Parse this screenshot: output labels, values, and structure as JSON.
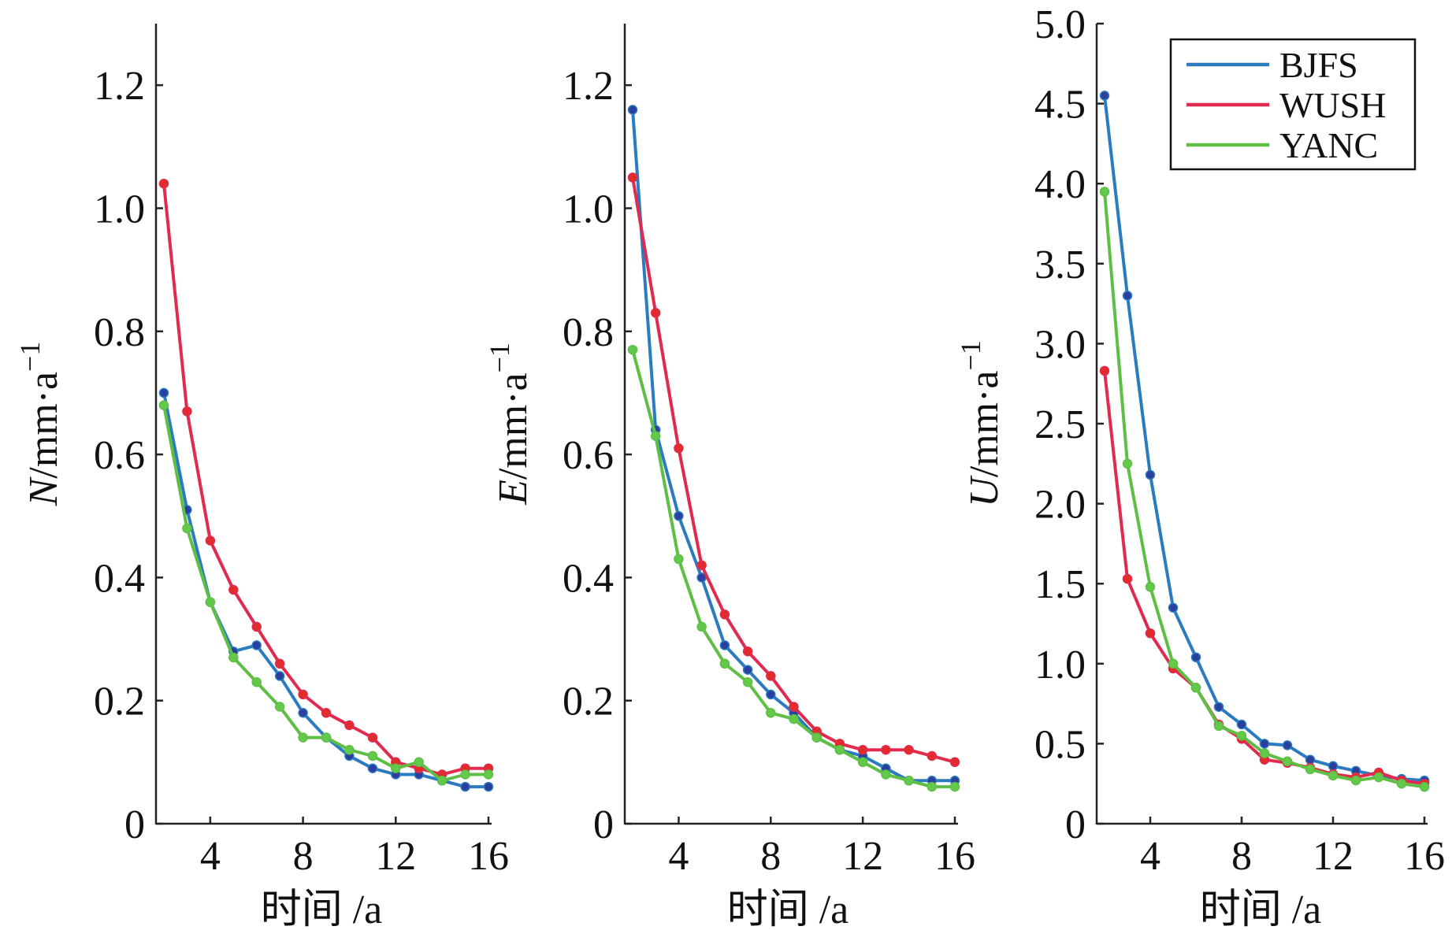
{
  "chart_data": [
    {
      "type": "line",
      "ylabel_var": "N",
      "ylabel_unit": "/mm·a",
      "ylabel_exp": "−1",
      "xlabel": "时间 /a",
      "ylim": [
        0,
        1.3
      ],
      "xlim": [
        2,
        16
      ],
      "yticks": [
        0,
        0.2,
        0.4,
        0.6,
        0.8,
        1.0,
        1.2
      ],
      "ytick_labels": [
        "0",
        "0.2",
        "0.4",
        "0.6",
        "0.8",
        "1.0",
        "1.2"
      ],
      "xticks": [
        4,
        8,
        12,
        16
      ],
      "xtick_labels": [
        "4",
        "8",
        "12",
        "16"
      ],
      "x": [
        2,
        3,
        4,
        5,
        6,
        7,
        8,
        9,
        10,
        11,
        12,
        13,
        14,
        15,
        16
      ],
      "series": [
        {
          "name": "BJFS",
          "values": [
            0.7,
            0.51,
            0.36,
            0.28,
            0.29,
            0.24,
            0.18,
            0.14,
            0.11,
            0.09,
            0.08,
            0.08,
            0.07,
            0.06,
            0.06
          ]
        },
        {
          "name": "WUSH",
          "values": [
            1.04,
            0.67,
            0.46,
            0.38,
            0.32,
            0.26,
            0.21,
            0.18,
            0.16,
            0.14,
            0.1,
            0.09,
            0.08,
            0.09,
            0.09
          ]
        },
        {
          "name": "YANC",
          "values": [
            0.68,
            0.48,
            0.36,
            0.27,
            0.23,
            0.19,
            0.14,
            0.14,
            0.12,
            0.11,
            0.09,
            0.1,
            0.07,
            0.08,
            0.08
          ]
        }
      ]
    },
    {
      "type": "line",
      "ylabel_var": "E",
      "ylabel_unit": "/mm·a",
      "ylabel_exp": "−1",
      "xlabel": "时间 /a",
      "ylim": [
        0,
        1.3
      ],
      "xlim": [
        2,
        16
      ],
      "yticks": [
        0,
        0.2,
        0.4,
        0.6,
        0.8,
        1.0,
        1.2
      ],
      "ytick_labels": [
        "0",
        "0.2",
        "0.4",
        "0.6",
        "0.8",
        "1.0",
        "1.2"
      ],
      "xticks": [
        4,
        8,
        12,
        16
      ],
      "xtick_labels": [
        "4",
        "8",
        "12",
        "16"
      ],
      "x": [
        2,
        3,
        4,
        5,
        6,
        7,
        8,
        9,
        10,
        11,
        12,
        13,
        14,
        15,
        16
      ],
      "series": [
        {
          "name": "BJFS",
          "values": [
            1.16,
            0.64,
            0.5,
            0.4,
            0.29,
            0.25,
            0.21,
            0.18,
            0.14,
            0.12,
            0.11,
            0.09,
            0.07,
            0.07,
            0.07
          ]
        },
        {
          "name": "WUSH",
          "values": [
            1.05,
            0.83,
            0.61,
            0.42,
            0.34,
            0.28,
            0.24,
            0.19,
            0.15,
            0.13,
            0.12,
            0.12,
            0.12,
            0.11,
            0.1
          ]
        },
        {
          "name": "YANC",
          "values": [
            0.77,
            0.63,
            0.43,
            0.32,
            0.26,
            0.23,
            0.18,
            0.17,
            0.14,
            0.12,
            0.1,
            0.08,
            0.07,
            0.06,
            0.06
          ]
        }
      ]
    },
    {
      "type": "line",
      "ylabel_var": "U",
      "ylabel_unit": "/mm·a",
      "ylabel_exp": "−1",
      "xlabel": "时间 /a",
      "ylim": [
        0,
        5.0
      ],
      "xlim": [
        2,
        16
      ],
      "yticks": [
        0,
        0.5,
        1.0,
        1.5,
        2.0,
        2.5,
        3.0,
        3.5,
        4.0,
        4.5,
        5.0
      ],
      "ytick_labels": [
        "0",
        "0.5",
        "1.0",
        "1.5",
        "2.0",
        "2.5",
        "3.0",
        "3.5",
        "4.0",
        "4.5",
        "5.0"
      ],
      "xticks": [
        4,
        8,
        12,
        16
      ],
      "xtick_labels": [
        "4",
        "8",
        "12",
        "16"
      ],
      "x": [
        2,
        3,
        4,
        5,
        6,
        7,
        8,
        9,
        10,
        11,
        12,
        13,
        14,
        15,
        16
      ],
      "legend": "top-right",
      "series": [
        {
          "name": "BJFS",
          "values": [
            4.55,
            3.3,
            2.18,
            1.35,
            1.04,
            0.73,
            0.62,
            0.5,
            0.49,
            0.4,
            0.36,
            0.33,
            0.3,
            0.28,
            0.27
          ]
        },
        {
          "name": "WUSH",
          "values": [
            2.83,
            1.53,
            1.19,
            0.97,
            0.85,
            0.62,
            0.53,
            0.4,
            0.38,
            0.35,
            0.31,
            0.29,
            0.32,
            0.27,
            0.25
          ]
        },
        {
          "name": "YANC",
          "values": [
            3.95,
            2.25,
            1.48,
            1.0,
            0.85,
            0.61,
            0.55,
            0.44,
            0.39,
            0.34,
            0.3,
            0.27,
            0.29,
            0.25,
            0.23
          ]
        }
      ]
    }
  ],
  "colors": {
    "BJFS": "#2b7bc0",
    "BJFS_marker": "#2a3f9e",
    "WUSH": "#e02b4f",
    "WUSH_marker": "#e22b2b",
    "YANC": "#5fbf45",
    "YANC_marker": "#63c94a"
  },
  "legend": {
    "items": [
      "BJFS",
      "WUSH",
      "YANC"
    ]
  }
}
